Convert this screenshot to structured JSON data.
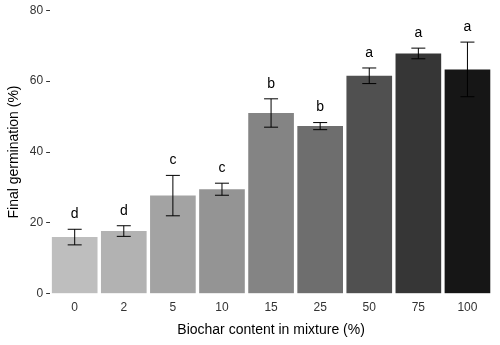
{
  "chart_data": {
    "type": "bar",
    "x_label": "Biochar content in mixture (%)",
    "y_label": "Final germination (%)",
    "categories": [
      "0",
      "2",
      "5",
      "10",
      "15",
      "25",
      "50",
      "75",
      "100"
    ],
    "values": [
      16,
      17.7,
      27.7,
      29.5,
      51,
      47.3,
      61.5,
      67.8,
      63.3
    ],
    "errors": [
      2.2,
      1.5,
      5.7,
      1.7,
      4,
      1,
      2.2,
      1.5,
      7.7
    ],
    "significance_letters": [
      "d",
      "d",
      "c",
      "c",
      "b",
      "b",
      "a",
      "a",
      "a"
    ],
    "colors": [
      "#bebebe",
      "#b2b2b2",
      "#a3a3a3",
      "#949494",
      "#848484",
      "#6e6e6e",
      "#505050",
      "#363636",
      "#161616"
    ],
    "ylim": [
      0,
      80
    ],
    "yticks": [
      0,
      20,
      40,
      60,
      80
    ],
    "grid": false
  }
}
